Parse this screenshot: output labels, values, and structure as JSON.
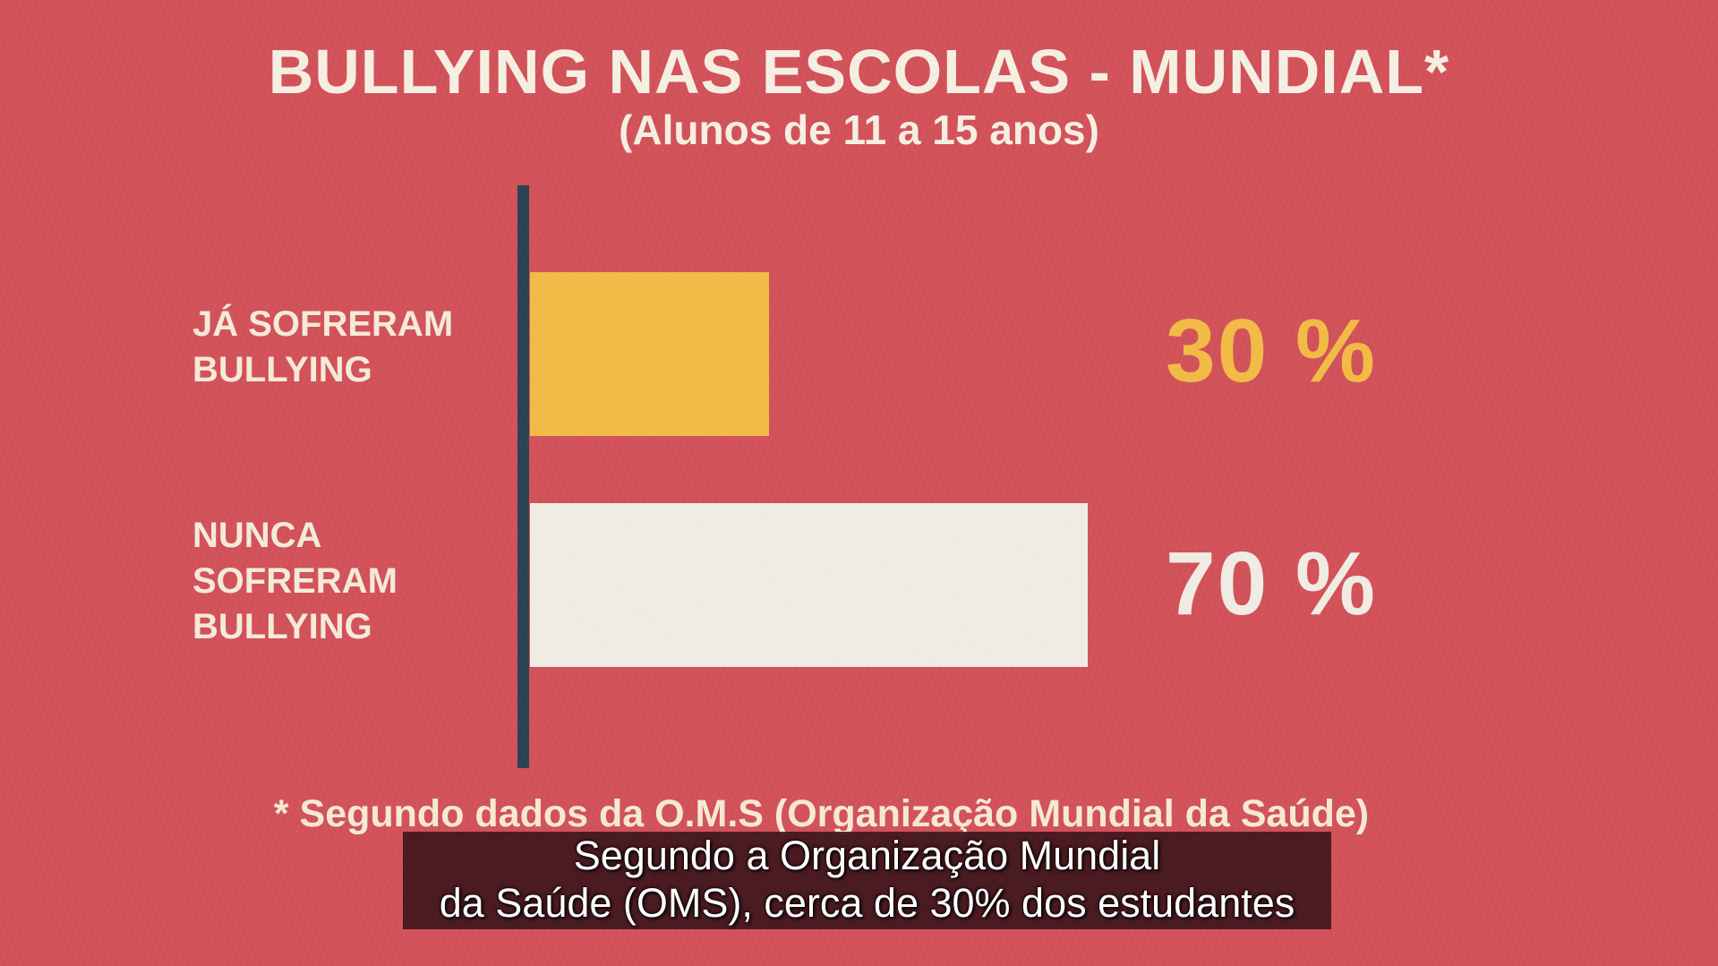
{
  "chart_data": {
    "type": "bar",
    "orientation": "horizontal",
    "title": "BULLYING NAS ESCOLAS - MUNDIAL*",
    "subtitle": "(Alunos de 11 a 15 anos)",
    "categories": [
      "JÁ SOFRERAM\nBULLYING",
      "NUNCA\nSOFRERAM\nBULLYING"
    ],
    "values": [
      30,
      70
    ],
    "value_labels": [
      "30 %",
      "70 %"
    ],
    "xlim": [
      0,
      100
    ],
    "unit": "%",
    "grid": false,
    "legend": false,
    "bar_colors": [
      "#f2ba46",
      "#f0ece3"
    ],
    "value_colors": [
      "#f2ba46",
      "#f0ece3"
    ],
    "axis_color": "#2e4254",
    "footnote": "* Segundo dados da O.M.S (Organização Mundial da Saúde)"
  },
  "subtitles_overlay": {
    "lines": [
      "Segundo a Organização Mundial",
      "da Saúde (OMS), cerca de 30% dos estudantes"
    ]
  },
  "colors": {
    "background": "#d2525a",
    "title_text": "#f5efe2",
    "label_text": "#f4ead9",
    "footnote_text": "#f5e9d5",
    "caption_bg": "rgba(62,23,28,0.92)",
    "caption_text": "#ffffff"
  }
}
